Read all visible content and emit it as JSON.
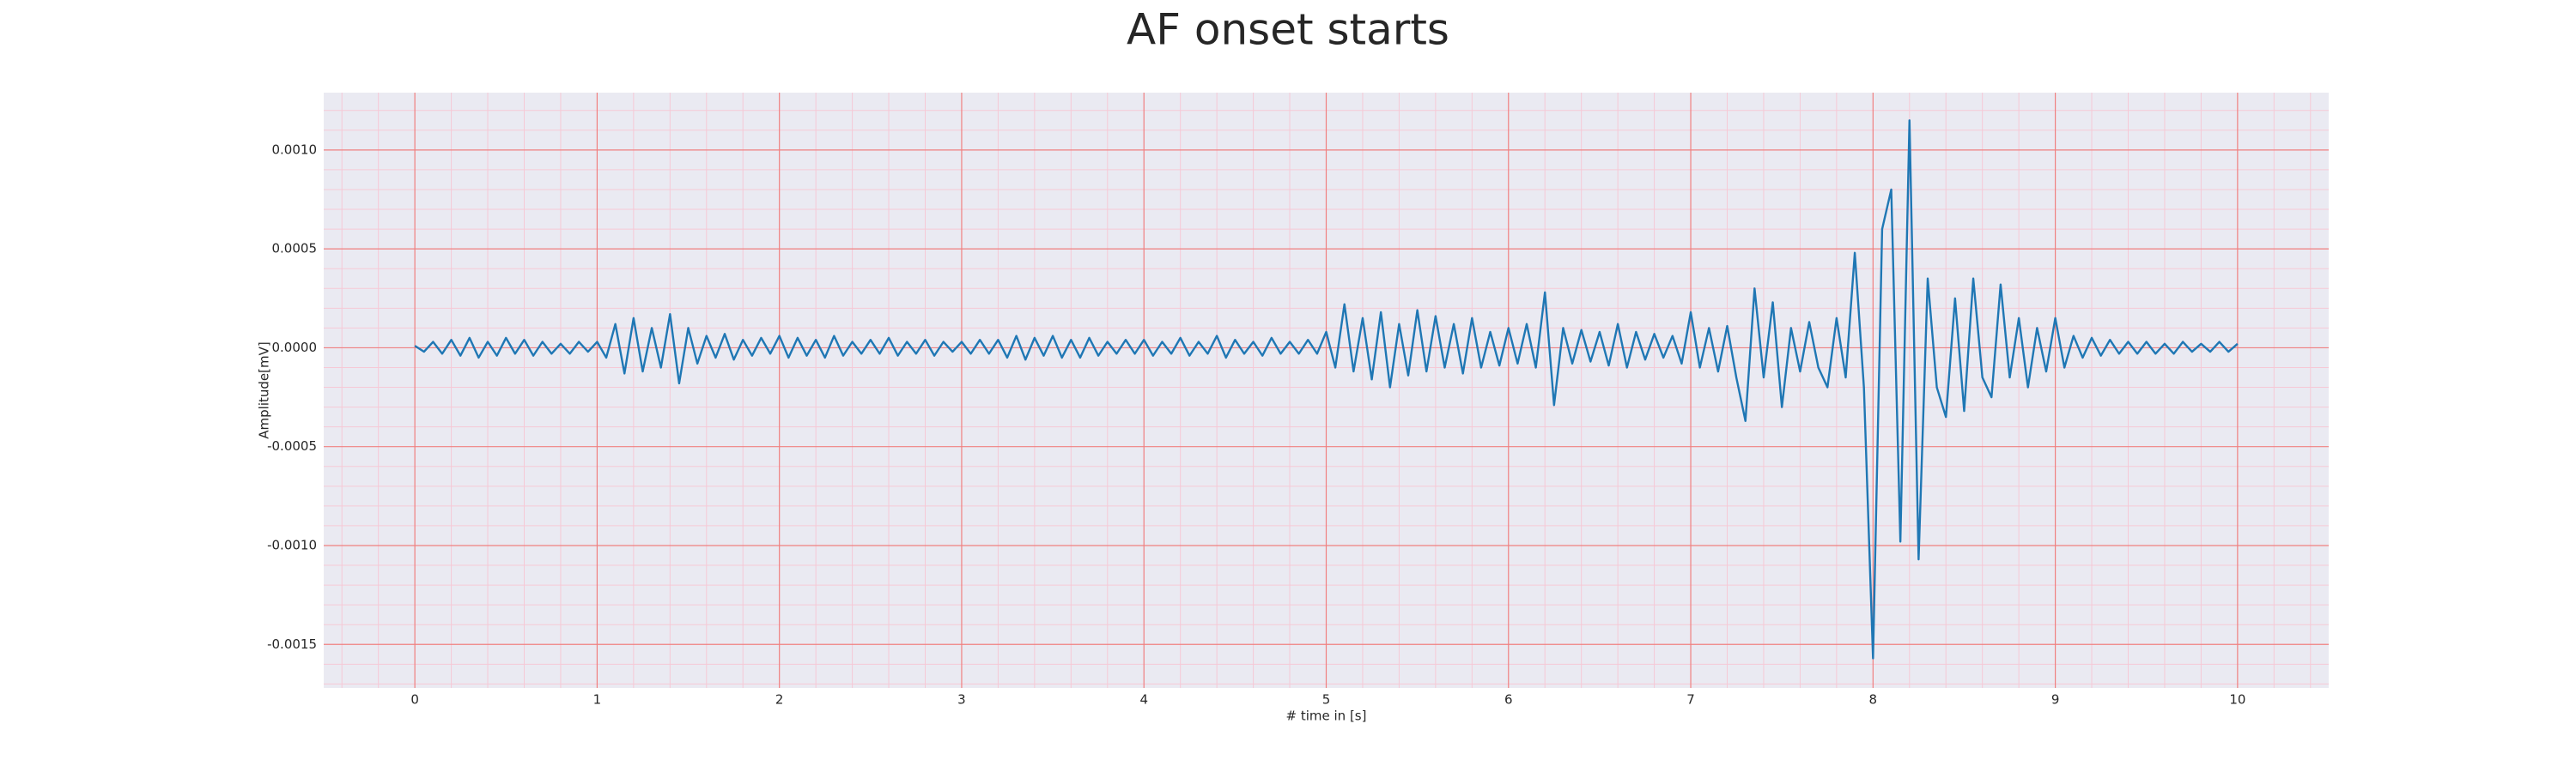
{
  "chart_data": {
    "type": "line",
    "title": "AF onset starts",
    "xlabel": "# time in [s]",
    "ylabel": "Amplitude[mV]",
    "color": "#1f77b4",
    "grid": true,
    "grid_color": "#f08080",
    "minor_grid_color": "#f6c9d6",
    "background": "#eaeaf2",
    "xlim": [
      -0.5,
      10.5
    ],
    "ylim": [
      -0.00172,
      0.00129
    ],
    "xticks": [
      0,
      1,
      2,
      3,
      4,
      5,
      6,
      7,
      8,
      9,
      10
    ],
    "yticks": [
      {
        "value": -0.0015,
        "label": "-0.0015"
      },
      {
        "value": -0.001,
        "label": "-0.0010"
      },
      {
        "value": -0.0005,
        "label": "-0.0005"
      },
      {
        "value": 0,
        "label": "0.0000"
      },
      {
        "value": 0.0005,
        "label": "0.0005"
      },
      {
        "value": 0.001,
        "label": "0.0010"
      }
    ],
    "xminorticks": [
      -0.4,
      -0.2,
      0.2,
      0.4,
      0.6,
      0.8,
      1.2,
      1.4,
      1.6,
      1.8,
      2.2,
      2.4,
      2.6,
      2.8,
      3.2,
      3.4,
      3.6,
      3.8,
      4.2,
      4.4,
      4.6,
      4.8,
      5.2,
      5.4,
      5.6,
      5.8,
      6.2,
      6.4,
      6.6,
      6.8,
      7.2,
      7.4,
      7.6,
      7.8,
      8.2,
      8.4,
      8.6,
      8.8,
      9.2,
      9.4,
      9.6,
      9.8,
      10.2,
      10.4
    ],
    "yminorticks": [
      -0.0017,
      -0.0016,
      -0.0014,
      -0.0013,
      -0.0012,
      -0.0011,
      -0.0009,
      -0.0008,
      -0.0007,
      -0.0006,
      -0.0004,
      -0.0003,
      -0.0002,
      -0.0001,
      0.0001,
      0.0002,
      0.0003,
      0.0004,
      0.0006,
      0.0007,
      0.0008,
      0.0009,
      0.0011,
      0.0012
    ],
    "x": [
      0,
      0.05,
      0.1,
      0.15,
      0.2,
      0.25,
      0.3,
      0.35,
      0.4,
      0.45,
      0.5,
      0.55,
      0.6,
      0.65,
      0.7,
      0.75,
      0.8,
      0.85,
      0.9,
      0.95,
      1,
      1.05,
      1.1,
      1.15,
      1.2,
      1.25,
      1.3,
      1.35,
      1.4,
      1.45,
      1.5,
      1.55,
      1.6,
      1.65,
      1.7,
      1.75,
      1.8,
      1.85,
      1.9,
      1.95,
      2,
      2.05,
      2.1,
      2.15,
      2.2,
      2.25,
      2.3,
      2.35,
      2.4,
      2.45,
      2.5,
      2.55,
      2.6,
      2.65,
      2.7,
      2.75,
      2.8,
      2.85,
      2.9,
      2.95,
      3,
      3.05,
      3.1,
      3.15,
      3.2,
      3.25,
      3.3,
      3.35,
      3.4,
      3.45,
      3.5,
      3.55,
      3.6,
      3.65,
      3.7,
      3.75,
      3.8,
      3.85,
      3.9,
      3.95,
      4,
      4.05,
      4.1,
      4.15,
      4.2,
      4.25,
      4.3,
      4.35,
      4.4,
      4.45,
      4.5,
      4.55,
      4.6,
      4.65,
      4.7,
      4.75,
      4.8,
      4.85,
      4.9,
      4.95,
      5,
      5.05,
      5.1,
      5.15,
      5.2,
      5.25,
      5.3,
      5.35,
      5.4,
      5.45,
      5.5,
      5.55,
      5.6,
      5.65,
      5.7,
      5.75,
      5.8,
      5.85,
      5.9,
      5.95,
      6,
      6.05,
      6.1,
      6.15,
      6.2,
      6.25,
      6.3,
      6.35,
      6.4,
      6.45,
      6.5,
      6.55,
      6.6,
      6.65,
      6.7,
      6.75,
      6.8,
      6.85,
      6.9,
      6.95,
      7,
      7.05,
      7.1,
      7.15,
      7.2,
      7.25,
      7.3,
      7.35,
      7.4,
      7.45,
      7.5,
      7.55,
      7.6,
      7.65,
      7.7,
      7.75,
      7.8,
      7.85,
      7.9,
      7.95,
      8,
      8.05,
      8.1,
      8.15,
      8.2,
      8.25,
      8.3,
      8.35,
      8.4,
      8.45,
      8.5,
      8.55,
      8.6,
      8.65,
      8.7,
      8.75,
      8.8,
      8.85,
      8.9,
      8.95,
      9,
      9.05,
      9.1,
      9.15,
      9.2,
      9.25,
      9.3,
      9.35,
      9.4,
      9.45,
      9.5,
      9.55,
      9.6,
      9.65,
      9.7,
      9.75,
      9.8,
      9.85,
      9.9,
      9.95,
      10
    ],
    "values": [
      1e-05,
      -2e-05,
      3e-05,
      -3e-05,
      4e-05,
      -4e-05,
      5e-05,
      -5e-05,
      3e-05,
      -4e-05,
      5e-05,
      -3e-05,
      4e-05,
      -4e-05,
      3e-05,
      -3e-05,
      2e-05,
      -3e-05,
      3e-05,
      -2e-05,
      3e-05,
      -5e-05,
      0.00012,
      -0.00013,
      0.00015,
      -0.00012,
      0.0001,
      -0.0001,
      0.00017,
      -0.00018,
      0.0001,
      -8e-05,
      6e-05,
      -5e-05,
      7e-05,
      -6e-05,
      4e-05,
      -4e-05,
      5e-05,
      -3e-05,
      6e-05,
      -5e-05,
      5e-05,
      -4e-05,
      4e-05,
      -5e-05,
      6e-05,
      -4e-05,
      3e-05,
      -3e-05,
      4e-05,
      -3e-05,
      5e-05,
      -4e-05,
      3e-05,
      -3e-05,
      4e-05,
      -4e-05,
      3e-05,
      -2e-05,
      3e-05,
      -3e-05,
      4e-05,
      -3e-05,
      4e-05,
      -5e-05,
      6e-05,
      -6e-05,
      5e-05,
      -4e-05,
      6e-05,
      -5e-05,
      4e-05,
      -5e-05,
      5e-05,
      -4e-05,
      3e-05,
      -3e-05,
      4e-05,
      -3e-05,
      4e-05,
      -4e-05,
      3e-05,
      -3e-05,
      5e-05,
      -4e-05,
      3e-05,
      -3e-05,
      6e-05,
      -5e-05,
      4e-05,
      -3e-05,
      3e-05,
      -4e-05,
      5e-05,
      -3e-05,
      3e-05,
      -3e-05,
      4e-05,
      -3e-05,
      8e-05,
      -0.0001,
      0.00022,
      -0.00012,
      0.00015,
      -0.00016,
      0.00018,
      -0.0002,
      0.00012,
      -0.00014,
      0.00019,
      -0.00012,
      0.00016,
      -0.0001,
      0.00012,
      -0.00013,
      0.00015,
      -0.0001,
      8e-05,
      -9e-05,
      0.0001,
      -8e-05,
      0.00012,
      -0.0001,
      0.00028,
      -0.00029,
      0.0001,
      -8e-05,
      9e-05,
      -7e-05,
      8e-05,
      -9e-05,
      0.00012,
      -0.0001,
      8e-05,
      -6e-05,
      7e-05,
      -5e-05,
      6e-05,
      -8e-05,
      0.00018,
      -0.0001,
      0.0001,
      -0.00012,
      0.00011,
      -0.00015,
      -0.00037,
      0.0003,
      -0.00015,
      0.00023,
      -0.0003,
      0.0001,
      -0.00012,
      0.00013,
      -0.0001,
      -0.0002,
      0.00015,
      -0.00015,
      0.00048,
      -0.0002,
      -0.00157,
      0.0006,
      0.0008,
      -0.00098,
      0.00115,
      -0.00107,
      0.00035,
      -0.0002,
      -0.00035,
      0.00025,
      -0.00032,
      0.00035,
      -0.00015,
      -0.00025,
      0.00032,
      -0.00015,
      0.00015,
      -0.0002,
      0.0001,
      -0.00012,
      0.00015,
      -0.0001,
      6e-05,
      -5e-05,
      5e-05,
      -4e-05,
      4e-05,
      -3e-05,
      3e-05,
      -3e-05,
      3e-05,
      -3e-05,
      2e-05,
      -3e-05,
      3e-05,
      -2e-05,
      2e-05,
      -2e-05,
      3e-05,
      -2e-05,
      2e-05
    ]
  }
}
